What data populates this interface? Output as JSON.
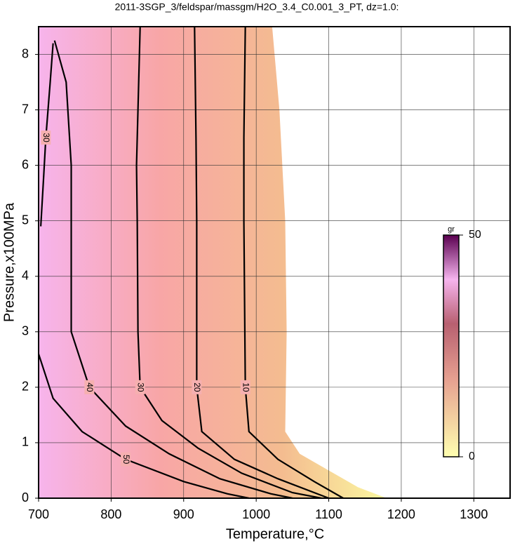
{
  "chart_data": {
    "type": "contour",
    "title": "2011-3SGP_3/feldspar/massgm/H2O_3.4_C0.001_3_PT, dz=1.0:",
    "x_label": "Temperature,°C",
    "y_label": "Pressure,x100MPa",
    "xlim": [
      700,
      1350
    ],
    "ylim": [
      0,
      8.5
    ],
    "xticks": [
      700,
      800,
      900,
      1000,
      1100,
      1200,
      1300
    ],
    "yticks": [
      0,
      1,
      2,
      3,
      4,
      5,
      6,
      7,
      8
    ],
    "grid": true,
    "contours": [
      {
        "level": 10,
        "x": [
          985,
          983,
          983,
          985,
          990,
          1030,
          1080,
          1120
        ],
        "y": [
          8.5,
          6.5,
          5,
          2,
          1.2,
          0.7,
          0.3,
          0
        ]
      },
      {
        "level": 20,
        "x": [
          915,
          917,
          918,
          918,
          925,
          970,
          1030,
          1100
        ],
        "y": [
          8.5,
          6.5,
          5,
          2,
          1.2,
          0.7,
          0.35,
          0
        ]
      },
      {
        "level": 30,
        "x": [
          840,
          835,
          836,
          837,
          840,
          870,
          920,
          980,
          1050,
          1090
        ],
        "y": [
          8.5,
          6,
          5,
          3,
          2,
          1.4,
          0.9,
          0.45,
          0.1,
          0
        ]
      },
      {
        "level": 40,
        "x": [
          722,
          738,
          745,
          745,
          745,
          770,
          820,
          880,
          950,
          1020,
          1050
        ],
        "y": [
          8.25,
          7.5,
          6,
          4,
          3,
          2,
          1.3,
          0.8,
          0.35,
          0.08,
          0
        ]
      },
      {
        "level": 50,
        "x": [
          700,
          720,
          760,
          820,
          900,
          960,
          990
        ],
        "y": [
          2.6,
          1.8,
          1.2,
          0.7,
          0.3,
          0.08,
          0
        ]
      },
      {
        "level": 30,
        "x": [
          703,
          707,
          710,
          716,
          720
        ],
        "y": [
          4.9,
          5.8,
          6.5,
          7.5,
          8.2
        ]
      }
    ],
    "colorbar": {
      "label": "gr",
      "lim": [
        0,
        50
      ],
      "ticks": [
        0,
        50
      ]
    }
  }
}
